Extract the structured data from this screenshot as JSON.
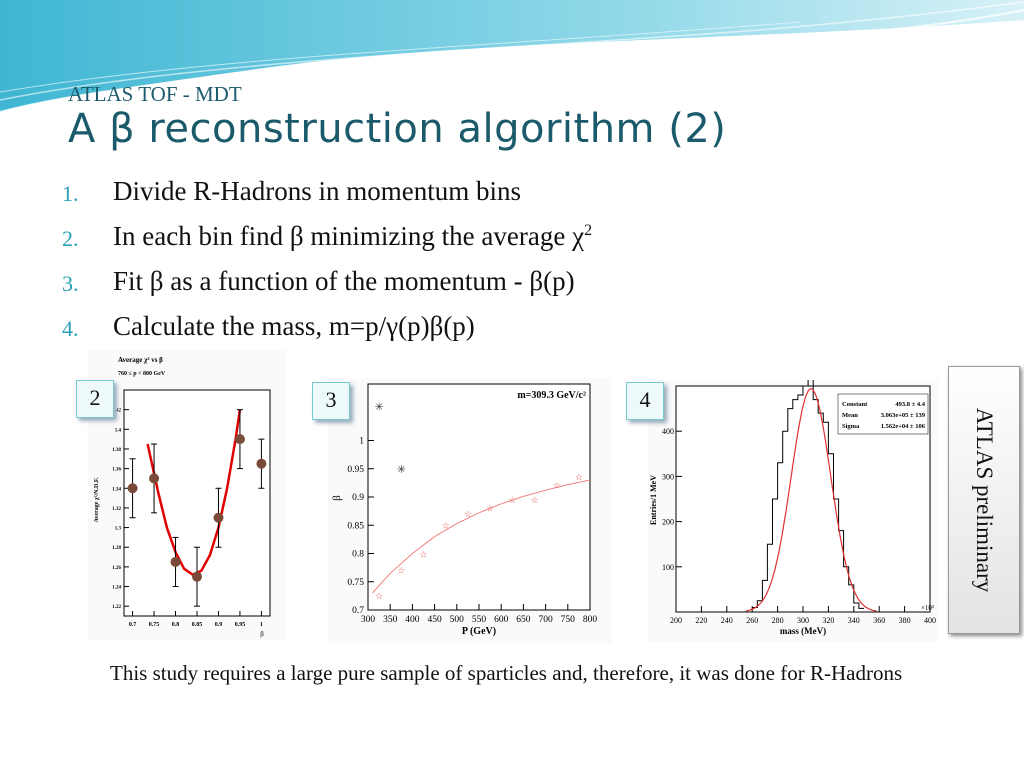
{
  "slide": {
    "subtitle": "ATLAS TOF  -  MDT",
    "title": "A β reconstruction algorithm (2)",
    "accent_color": "#2aa0b8",
    "title_color": "#1b5a6b"
  },
  "steps": [
    {
      "num": "1.",
      "text": "Divide R-Hadrons in momentum bins"
    },
    {
      "num": "2.",
      "text": "In each bin find β minimizing the average χ",
      "sup": "2"
    },
    {
      "num": "3.",
      "text": "Fit β as a function of the momentum - β(p)"
    },
    {
      "num": "4.",
      "text": "Calculate the mass, m=p/γ(p)β(p)"
    }
  ],
  "tags": [
    "2",
    "3",
    "4"
  ],
  "atlas_label": "ATLAS preliminary",
  "note": "This study requires a large pure sample of sparticles and, therefore, it was done for R-Hadrons",
  "chart_data": [
    {
      "type": "scatter",
      "title": "Average χ² vs β",
      "subtitle": "760 ≤ p < 800 GeV",
      "xlabel": "β",
      "ylabel": "Average χ²/N.D.F.",
      "xlim": [
        0.68,
        1.02
      ],
      "ylim": [
        1.21,
        1.44
      ],
      "x_ticks": [
        "0.7",
        "0.75",
        "0.8",
        "0.85",
        "0.9",
        "0.95",
        "1"
      ],
      "y_ticks": [
        "1.22",
        "1.24",
        "1.26",
        "1.28",
        "1.3",
        "1.32",
        "1.34",
        "1.36",
        "1.38",
        "1.4",
        "1.42"
      ],
      "points": [
        {
          "x": 0.7,
          "y": 1.34,
          "err": 0.03
        },
        {
          "x": 0.75,
          "y": 1.35,
          "err": 0.035
        },
        {
          "x": 0.8,
          "y": 1.265,
          "err": 0.025
        },
        {
          "x": 0.85,
          "y": 1.25,
          "err": 0.03
        },
        {
          "x": 0.9,
          "y": 1.31,
          "err": 0.03
        },
        {
          "x": 0.95,
          "y": 1.39,
          "err": 0.03
        },
        {
          "x": 1.0,
          "y": 1.365,
          "err": 0.025
        }
      ],
      "fit": {
        "x": [
          0.735,
          0.76,
          0.78,
          0.8,
          0.82,
          0.84,
          0.86,
          0.88,
          0.9,
          0.92,
          0.94,
          0.95
        ],
        "y": [
          1.385,
          1.335,
          1.3,
          1.275,
          1.258,
          1.252,
          1.256,
          1.272,
          1.3,
          1.34,
          1.39,
          1.42
        ]
      }
    },
    {
      "type": "scatter",
      "title": "m=309.3 GeV/c²",
      "xlabel": "P (GeV)",
      "ylabel": "β",
      "xlim": [
        300,
        800
      ],
      "ylim": [
        0.7,
        1.1
      ],
      "x_ticks": [
        "300",
        "350",
        "400",
        "450",
        "500",
        "550",
        "600",
        "650",
        "700",
        "750",
        "800"
      ],
      "y_ticks": [
        "0.7",
        "0.75",
        "0.8",
        "0.85",
        "0.9",
        "0.95",
        "1",
        "1.05",
        "1.1"
      ],
      "points_star": [
        {
          "x": 325,
          "y": 0.725
        },
        {
          "x": 375,
          "y": 0.77
        },
        {
          "x": 425,
          "y": 0.798
        },
        {
          "x": 475,
          "y": 0.85
        },
        {
          "x": 525,
          "y": 0.87
        },
        {
          "x": 575,
          "y": 0.88
        },
        {
          "x": 625,
          "y": 0.895
        },
        {
          "x": 675,
          "y": 0.895
        },
        {
          "x": 725,
          "y": 0.92
        },
        {
          "x": 775,
          "y": 0.935
        }
      ],
      "points_cross": [
        {
          "x": 325,
          "y": 1.06
        },
        {
          "x": 375,
          "y": 0.95
        }
      ],
      "fit": {
        "x": [
          310,
          350,
          400,
          450,
          500,
          550,
          600,
          650,
          700,
          750,
          800
        ],
        "y": [
          0.73,
          0.765,
          0.8,
          0.83,
          0.853,
          0.872,
          0.888,
          0.901,
          0.912,
          0.922,
          0.93
        ]
      }
    },
    {
      "type": "histogram",
      "xlabel": "mass (MeV)",
      "ylabel": "Entries/1 MeV",
      "x_exponent": "×10³",
      "xlim": [
        200,
        400
      ],
      "ylim": [
        0,
        500
      ],
      "x_ticks": [
        "200",
        "220",
        "240",
        "260",
        "280",
        "300",
        "320",
        "340",
        "360",
        "380",
        "400"
      ],
      "y_ticks": [
        "100",
        "200",
        "300",
        "400"
      ],
      "stats": [
        {
          "label": "Constant",
          "value": "493.8 ± 4.4"
        },
        {
          "label": "Mean",
          "value": "3.063e+05 ± 139"
        },
        {
          "label": "Sigma",
          "value": "1.562e+04 ± 106"
        }
      ],
      "gauss": {
        "constant": 493.8,
        "mean": 306.3,
        "sigma": 15.62
      },
      "hist_x": [
        262,
        266,
        270,
        274,
        278,
        282,
        286,
        290,
        294,
        298,
        302,
        306,
        310,
        314,
        318,
        322,
        326,
        330,
        334,
        338,
        342,
        346
      ],
      "hist_y": [
        10,
        25,
        70,
        150,
        250,
        330,
        400,
        450,
        470,
        480,
        500,
        530,
        470,
        440,
        420,
        350,
        250,
        180,
        100,
        60,
        20,
        8
      ]
    }
  ]
}
